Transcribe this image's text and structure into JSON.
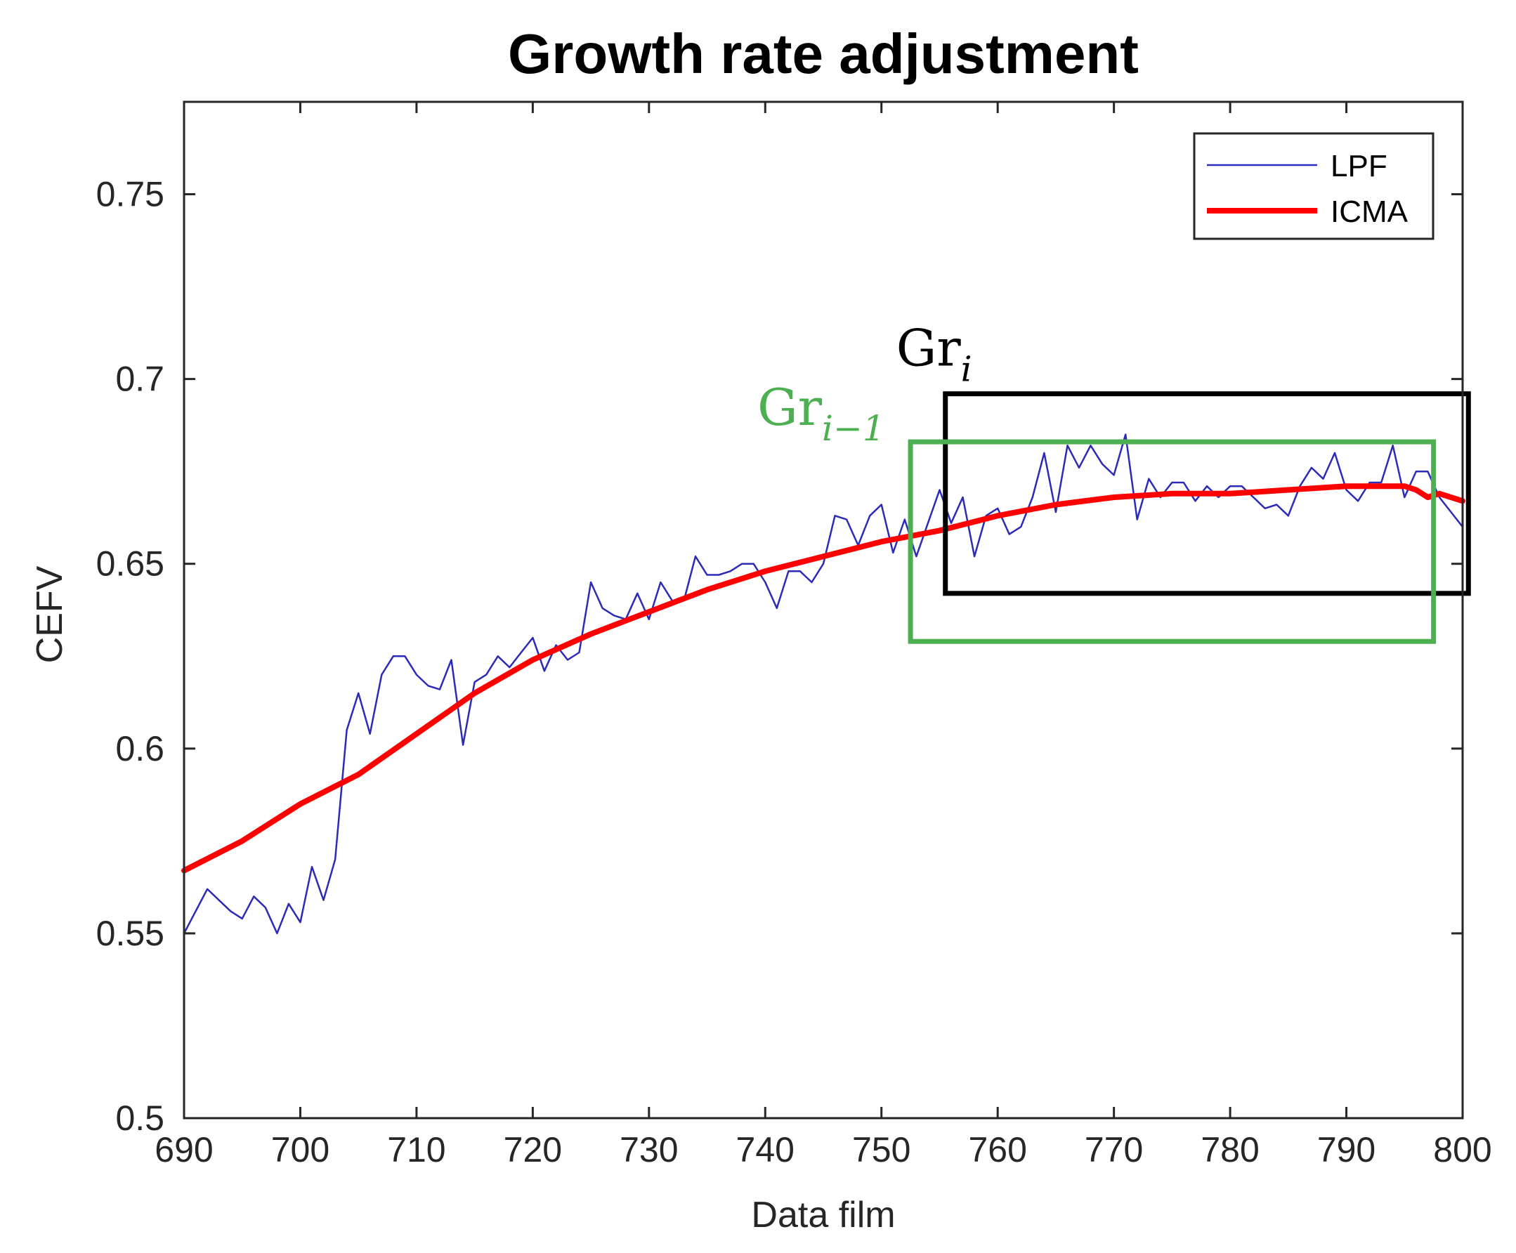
{
  "chart_data": {
    "type": "line",
    "title": "Growth rate adjustment",
    "xlabel": "Data film",
    "ylabel": "CEFV",
    "xlim": [
      690,
      800
    ],
    "ylim": [
      0.5,
      0.775
    ],
    "xticks": [
      690,
      700,
      710,
      720,
      730,
      740,
      750,
      760,
      770,
      780,
      790,
      800
    ],
    "xtick_labels": [
      "690",
      "700",
      "710",
      "720",
      "730",
      "740",
      "750",
      "760",
      "770",
      "780",
      "790",
      "800"
    ],
    "yticks": [
      0.5,
      0.55,
      0.6,
      0.65,
      0.7,
      0.75
    ],
    "ytick_labels": [
      "0.5",
      "0.55",
      "0.6",
      "0.65",
      "0.7",
      "0.75"
    ],
    "grid": false,
    "legend_position": "top-right",
    "series": [
      {
        "name": "LPF",
        "color": "#2b2bb8",
        "x": [
          690,
          692,
          694,
          695,
          696,
          697,
          698,
          699,
          700,
          701,
          702,
          703,
          704,
          705,
          706,
          707,
          708,
          709,
          710,
          711,
          712,
          713,
          714,
          715,
          716,
          717,
          718,
          719,
          720,
          721,
          722,
          723,
          724,
          725,
          726,
          727,
          728,
          729,
          730,
          731,
          732,
          733,
          734,
          735,
          736,
          737,
          738,
          739,
          740,
          741,
          742,
          743,
          744,
          745,
          746,
          747,
          748,
          749,
          750,
          751,
          752,
          753,
          754,
          755,
          756,
          757,
          758,
          759,
          760,
          761,
          762,
          763,
          764,
          765,
          766,
          767,
          768,
          769,
          770,
          771,
          772,
          773,
          774,
          775,
          776,
          777,
          778,
          779,
          780,
          781,
          782,
          783,
          784,
          785,
          786,
          787,
          788,
          789,
          790,
          791,
          792,
          793,
          794,
          795,
          796,
          797,
          798,
          799,
          800
        ],
        "values": [
          0.55,
          0.562,
          0.556,
          0.554,
          0.56,
          0.557,
          0.55,
          0.558,
          0.553,
          0.568,
          0.559,
          0.57,
          0.605,
          0.615,
          0.604,
          0.62,
          0.625,
          0.625,
          0.62,
          0.617,
          0.616,
          0.624,
          0.601,
          0.618,
          0.62,
          0.625,
          0.622,
          0.626,
          0.63,
          0.621,
          0.628,
          0.624,
          0.626,
          0.645,
          0.638,
          0.636,
          0.635,
          0.642,
          0.635,
          0.645,
          0.64,
          0.64,
          0.652,
          0.647,
          0.647,
          0.648,
          0.65,
          0.65,
          0.645,
          0.638,
          0.648,
          0.648,
          0.645,
          0.65,
          0.663,
          0.662,
          0.655,
          0.663,
          0.666,
          0.653,
          0.662,
          0.652,
          0.661,
          0.67,
          0.661,
          0.668,
          0.652,
          0.663,
          0.665,
          0.658,
          0.66,
          0.668,
          0.68,
          0.664,
          0.682,
          0.676,
          0.682,
          0.677,
          0.674,
          0.685,
          0.662,
          0.673,
          0.668,
          0.672,
          0.672,
          0.667,
          0.671,
          0.668,
          0.671,
          0.671,
          0.668,
          0.665,
          0.666,
          0.663,
          0.671,
          0.676,
          0.673,
          0.68,
          0.67,
          0.667,
          0.672,
          0.672,
          0.682,
          0.668,
          0.675,
          0.675,
          0.668,
          0.664,
          0.66
        ]
      },
      {
        "name": "ICMA",
        "color": "#ff0000",
        "x": [
          690,
          695,
          700,
          705,
          710,
          715,
          720,
          725,
          730,
          735,
          740,
          745,
          750,
          755,
          760,
          765,
          770,
          775,
          780,
          785,
          790,
          793,
          795,
          796,
          797,
          798,
          800
        ],
        "values": [
          0.567,
          0.575,
          0.585,
          0.593,
          0.604,
          0.615,
          0.624,
          0.631,
          0.637,
          0.643,
          0.648,
          0.652,
          0.656,
          0.659,
          0.663,
          0.666,
          0.668,
          0.669,
          0.669,
          0.67,
          0.671,
          0.671,
          0.671,
          0.67,
          0.668,
          0.669,
          0.667
        ]
      }
    ],
    "annotations": [
      {
        "main": "Gr",
        "sub": "i",
        "color": "#000000",
        "x_range": [
          755.5,
          800.5
        ],
        "y_range": [
          0.642,
          0.696
        ]
      },
      {
        "main": "Gr",
        "sub": "i−1",
        "color": "#4caf50",
        "x_range": [
          752.5,
          797.5
        ],
        "y_range": [
          0.629,
          0.683
        ]
      }
    ]
  }
}
